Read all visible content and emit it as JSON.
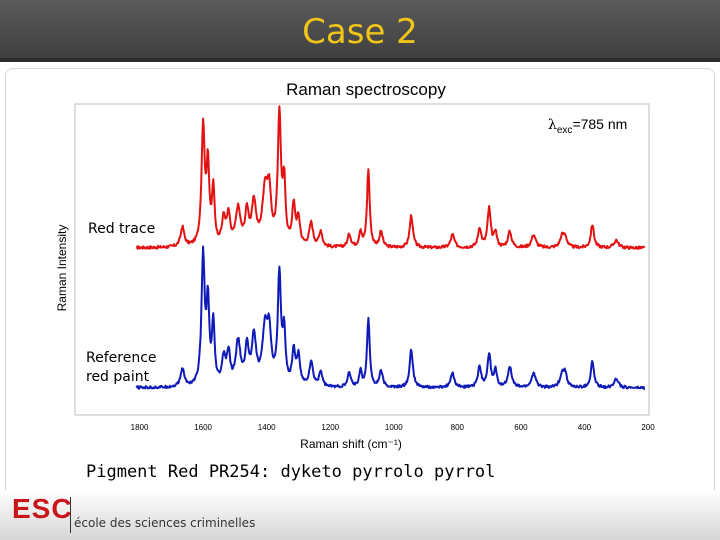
{
  "header": {
    "title": "Case 2"
  },
  "caption": "Pigment Red PR254: dyketo pyrrolo pyrrol",
  "footer": {
    "logo_letters": "ESC",
    "logo_subtitle": "école des sciences criminelles"
  },
  "colors": {
    "title": "#f0c419",
    "red_trace": "#e31212",
    "blue_trace": "#0f1ab8",
    "logo": "#c9161b"
  },
  "chart_data": {
    "type": "line",
    "title": "Raman spectroscopy",
    "annotation": {
      "main": "λ",
      "sub": "exc",
      "rest": "=785 nm"
    },
    "xlabel": "Raman shift (cm⁻¹)",
    "ylabel": "Raman Intensity",
    "x_reversed": true,
    "xlim": [
      2000,
      200
    ],
    "x_ticks": [
      1800,
      1600,
      1400,
      1200,
      1000,
      800,
      600,
      400,
      200
    ],
    "y_ticks_shown": false,
    "grid": false,
    "series": [
      {
        "name": "Red trace",
        "color": "#e31212",
        "baseline": 0,
        "peaks": [
          [
            1665,
            15,
            7
          ],
          [
            1600,
            92,
            6
          ],
          [
            1585,
            60,
            5
          ],
          [
            1568,
            42,
            5
          ],
          [
            1535,
            20,
            7
          ],
          [
            1520,
            22,
            6
          ],
          [
            1490,
            28,
            9
          ],
          [
            1462,
            25,
            7
          ],
          [
            1440,
            32,
            8
          ],
          [
            1405,
            42,
            10
          ],
          [
            1392,
            35,
            7
          ],
          [
            1360,
            100,
            6
          ],
          [
            1345,
            45,
            5
          ],
          [
            1315,
            30,
            6
          ],
          [
            1300,
            20,
            6
          ],
          [
            1260,
            18,
            7
          ],
          [
            1230,
            12,
            6
          ],
          [
            1140,
            10,
            6
          ],
          [
            1105,
            12,
            5
          ],
          [
            1080,
            60,
            5
          ],
          [
            1040,
            12,
            6
          ],
          [
            945,
            25,
            6
          ],
          [
            815,
            10,
            7
          ],
          [
            730,
            15,
            6
          ],
          [
            700,
            30,
            6
          ],
          [
            680,
            12,
            5
          ],
          [
            635,
            12,
            7
          ],
          [
            560,
            10,
            8
          ],
          [
            470,
            9,
            8
          ],
          [
            460,
            7,
            6
          ],
          [
            375,
            18,
            6
          ],
          [
            300,
            6,
            8
          ]
        ]
      },
      {
        "name": "Reference red paint",
        "color": "#0f1ab8",
        "baseline": -140,
        "peaks": [
          [
            1665,
            15,
            7
          ],
          [
            1600,
            108,
            6
          ],
          [
            1585,
            66,
            5
          ],
          [
            1568,
            50,
            5
          ],
          [
            1535,
            22,
            7
          ],
          [
            1520,
            25,
            6
          ],
          [
            1490,
            36,
            9
          ],
          [
            1462,
            30,
            7
          ],
          [
            1440,
            40,
            8
          ],
          [
            1405,
            46,
            10
          ],
          [
            1392,
            38,
            7
          ],
          [
            1360,
            92,
            6
          ],
          [
            1345,
            42,
            5
          ],
          [
            1315,
            28,
            6
          ],
          [
            1300,
            24,
            6
          ],
          [
            1260,
            20,
            7
          ],
          [
            1230,
            13,
            6
          ],
          [
            1140,
            12,
            6
          ],
          [
            1105,
            13,
            5
          ],
          [
            1080,
            58,
            5
          ],
          [
            1040,
            14,
            6
          ],
          [
            945,
            32,
            6
          ],
          [
            815,
            12,
            7
          ],
          [
            730,
            18,
            6
          ],
          [
            700,
            28,
            6
          ],
          [
            680,
            14,
            5
          ],
          [
            635,
            18,
            7
          ],
          [
            560,
            12,
            8
          ],
          [
            470,
            12,
            8
          ],
          [
            460,
            10,
            6
          ],
          [
            375,
            22,
            6
          ],
          [
            300,
            8,
            8
          ]
        ]
      }
    ]
  }
}
